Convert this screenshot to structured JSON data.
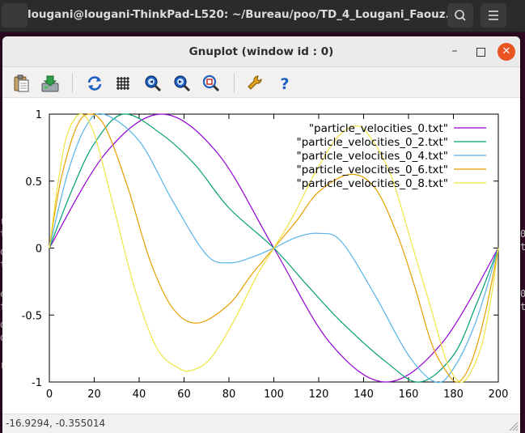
{
  "terminal": {
    "title": "lougani@lougani-ThinkPad-L520: ~/Bureau/poo/TD_4_Lougani_Faouz...",
    "fragments_left": [
      "r",
      "t",
      "o",
      "t",
      "e",
      "t",
      "d",
      "o",
      "r"
    ],
    "fragments_right": [
      "0",
      "t",
      "0",
      "t"
    ]
  },
  "window": {
    "title": "Gnuplot (window id : 0)",
    "minimize_glyph": "–",
    "close_glyph": "✕"
  },
  "toolbar": {
    "icons": [
      "clipboard-icon",
      "export-icon",
      "replot-icon",
      "grid-icon",
      "zoom-previous-icon",
      "zoom-next-icon",
      "autoscale-icon",
      "settings-icon",
      "help-icon"
    ],
    "help_glyph": "?"
  },
  "status": {
    "coordinates": "-16.9294, -0.355014"
  },
  "chart_data": {
    "type": "line",
    "title": "",
    "xlabel": "",
    "ylabel": "",
    "xlim": [
      0,
      200
    ],
    "ylim": [
      -1,
      1
    ],
    "xticks": [
      0,
      20,
      40,
      60,
      80,
      100,
      120,
      140,
      160,
      180,
      200
    ],
    "yticks": [
      -1,
      -0.5,
      0,
      0.5,
      1
    ],
    "ytick_labels": [
      "-1",
      "-0.5",
      "0",
      "0.5",
      "1"
    ],
    "grid": false,
    "legend_position": "top-right",
    "series": [
      {
        "name": "\"particle_velocities_0.txt\"",
        "color": "#9400d3",
        "x": [
          0,
          25,
          50,
          75,
          100,
          125,
          150,
          175,
          200
        ],
        "y": [
          0,
          0.707,
          1,
          0.707,
          0,
          -0.707,
          -1,
          -0.707,
          0
        ]
      },
      {
        "name": "\"particle_velocities_0_2.txt\"",
        "color": "#009e73",
        "x": [
          0,
          10,
          20,
          33,
          50,
          65,
          80,
          100,
          115,
          130,
          150,
          165,
          180,
          190,
          200
        ],
        "y": [
          0,
          0.43,
          0.78,
          1,
          0.85,
          0.62,
          0.3,
          0,
          -0.28,
          -0.55,
          -0.85,
          -1,
          -0.8,
          -0.43,
          0
        ]
      },
      {
        "name": "\"particle_velocities_0_4.txt\"",
        "color": "#56b4e9",
        "x": [
          0,
          8,
          16,
          24,
          40,
          55,
          70,
          80,
          90,
          100,
          110,
          120,
          130,
          145,
          160,
          172,
          180,
          190,
          200
        ],
        "y": [
          0,
          0.55,
          0.9,
          1,
          0.8,
          0.35,
          -0.05,
          -0.11,
          -0.07,
          0,
          0.08,
          0.11,
          0.05,
          -0.35,
          -0.8,
          -1,
          -0.9,
          -0.55,
          0
        ]
      },
      {
        "name": "\"particle_velocities_0_6.txt\"",
        "color": "#e69f00",
        "x": [
          0,
          5,
          12,
          18,
          25,
          35,
          45,
          55,
          66,
          80,
          90,
          100,
          110,
          120,
          134,
          145,
          155,
          163,
          170,
          176,
          182,
          188,
          194,
          200
        ],
        "y": [
          0,
          0.5,
          0.9,
          1,
          0.9,
          0.45,
          -0.1,
          -0.45,
          -0.56,
          -0.42,
          -0.2,
          0,
          0.2,
          0.42,
          0.55,
          0.45,
          0.1,
          -0.3,
          -0.7,
          -0.9,
          -1,
          -0.85,
          -0.5,
          0
        ]
      },
      {
        "name": "\"particle_velocities_0_8.txt\"",
        "color": "#f0e442",
        "x": [
          0,
          4,
          8,
          14,
          20,
          28,
          38,
          48,
          58,
          64,
          72,
          82,
          92,
          100,
          108,
          118,
          128,
          136,
          142,
          152,
          162,
          170,
          176,
          180,
          184,
          188,
          193,
          197,
          200
        ],
        "y": [
          0,
          0.5,
          0.85,
          1,
          0.85,
          0.35,
          -0.3,
          -0.75,
          -0.9,
          -0.91,
          -0.82,
          -0.55,
          -0.22,
          0,
          0.22,
          0.55,
          0.82,
          0.91,
          0.85,
          0.55,
          0,
          -0.45,
          -0.8,
          -0.95,
          -1,
          -0.92,
          -0.7,
          -0.35,
          0
        ]
      }
    ]
  }
}
